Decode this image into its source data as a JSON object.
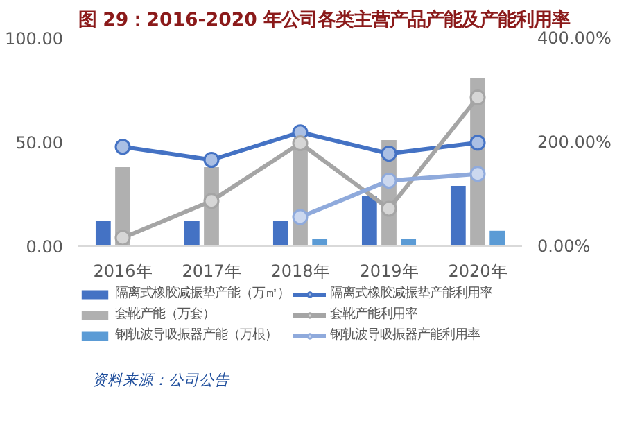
{
  "chart_data": {
    "type": "bar",
    "title": "图 29：2016-2020 年公司各类主营产品产能及产能利用率",
    "categories": [
      "2016年",
      "2017年",
      "2018年",
      "2019年",
      "2020年"
    ],
    "series": [
      {
        "name": "隔离式橡胶减振垫产能（万㎡）",
        "color": "#4472c4",
        "values": [
          12,
          12,
          12,
          24,
          29
        ]
      },
      {
        "name": "套靴产能（万套）",
        "color": "#b0b0b0",
        "values": [
          38,
          38,
          50,
          51,
          81
        ]
      },
      {
        "name": "钢轨波导吸振器产能（万根）",
        "color": "#5b9bd5",
        "values": [
          null,
          null,
          3.4,
          3.4,
          7.4
        ]
      },
      {
        "name": "隔离式橡胶减振垫产能利用率",
        "type": "line",
        "axis": "y2",
        "marker": "circle",
        "color": "#4472c4",
        "values": [
          191,
          166,
          219,
          178,
          199
        ]
      },
      {
        "name": "套靴产能利用率",
        "type": "line",
        "axis": "y2",
        "marker": "circle",
        "color": "#a5a5a5",
        "values": [
          16,
          87,
          198,
          72,
          286
        ]
      },
      {
        "name": "钢轨波导吸振器产能利用率",
        "type": "line",
        "axis": "y2",
        "marker": "circle",
        "color": "#8faadc",
        "values": [
          null,
          null,
          56,
          126,
          139
        ]
      }
    ],
    "ylim": [
      0,
      100
    ],
    "yticks": [
      {
        "value": 0,
        "label": "0.00"
      },
      {
        "value": 50,
        "label": "50.00"
      },
      {
        "value": 100,
        "label": "100.00"
      }
    ],
    "y2lim": [
      0,
      400
    ],
    "y2ticks": [
      {
        "value": 0,
        "label": "0.00%"
      },
      {
        "value": 200,
        "label": "200.00%"
      },
      {
        "value": 400,
        "label": "400.00%"
      }
    ],
    "legend": "bottom",
    "grid": false,
    "annotations": [
      "资料来源：公司公告"
    ]
  }
}
